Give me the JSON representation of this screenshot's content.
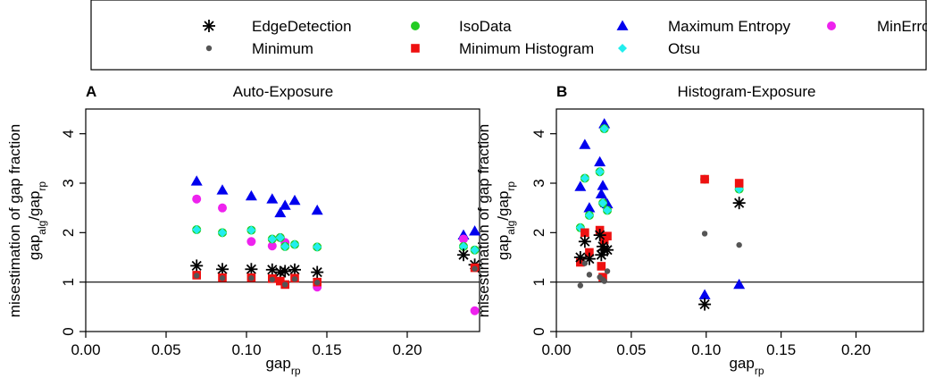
{
  "legend": {
    "position": "top",
    "entries": [
      {
        "label": "EdgeDetection",
        "marker": "asterisk",
        "color": "#000000"
      },
      {
        "label": "IsoData",
        "marker": "circle",
        "color": "#22cc22"
      },
      {
        "label": "Maximum Entropy",
        "marker": "triangle",
        "color": "#0000ee"
      },
      {
        "label": "MinError",
        "marker": "circle",
        "color": "#ee22ee"
      },
      {
        "label": "Minimum",
        "marker": "small-circle",
        "color": "#555555"
      },
      {
        "label": "Minimum Histogram",
        "marker": "square",
        "color": "#ee1111"
      },
      {
        "label": "Otsu",
        "marker": "diamond",
        "color": "#22eeee"
      }
    ]
  },
  "chart_data": [
    {
      "type": "scatter",
      "panel_label": "A",
      "title": "Auto-Exposure",
      "xlabel": {
        "main": "gap",
        "sub": "rp"
      },
      "ylabel": {
        "line1": "misestimation of gap fraction",
        "line2": [
          [
            "gap",
            "alg"
          ],
          [
            "/gap",
            "rp"
          ]
        ]
      },
      "xlim": [
        0,
        0.245
      ],
      "ylim": [
        0,
        4.5
      ],
      "xticks": [
        "0.00",
        "0.05",
        "0.10",
        "0.15",
        "0.20"
      ],
      "xtick_values": [
        0,
        0.05,
        0.1,
        0.15,
        0.2
      ],
      "yticks": [
        "0",
        "1",
        "2",
        "3",
        "4"
      ],
      "ytick_values": [
        0,
        1,
        2,
        3,
        4
      ],
      "hline": 1,
      "series": [
        {
          "name": "Maximum Entropy",
          "points": [
            [
              0.069,
              3.04
            ],
            [
              0.085,
              2.86
            ],
            [
              0.103,
              2.74
            ],
            [
              0.116,
              2.68
            ],
            [
              0.121,
              2.4
            ],
            [
              0.124,
              2.55
            ],
            [
              0.13,
              2.65
            ],
            [
              0.144,
              2.45
            ],
            [
              0.235,
              1.95
            ],
            [
              0.242,
              2.03
            ]
          ]
        },
        {
          "name": "MinError",
          "points": [
            [
              0.069,
              2.68
            ],
            [
              0.085,
              2.5
            ],
            [
              0.103,
              1.82
            ],
            [
              0.116,
              1.73
            ],
            [
              0.121,
              1.9
            ],
            [
              0.124,
              1.8
            ],
            [
              0.144,
              0.9
            ],
            [
              0.235,
              1.87
            ],
            [
              0.242,
              0.42
            ]
          ]
        },
        {
          "name": "IsoData",
          "points": [
            [
              0.069,
              2.06
            ],
            [
              0.085,
              2.0
            ],
            [
              0.103,
              2.05
            ],
            [
              0.116,
              1.87
            ],
            [
              0.121,
              1.9
            ],
            [
              0.124,
              1.72
            ],
            [
              0.13,
              1.76
            ],
            [
              0.144,
              1.71
            ],
            [
              0.235,
              1.72
            ],
            [
              0.242,
              1.65
            ]
          ]
        },
        {
          "name": "Otsu",
          "points": [
            [
              0.069,
              2.06
            ],
            [
              0.085,
              2.0
            ],
            [
              0.103,
              2.05
            ],
            [
              0.116,
              1.87
            ],
            [
              0.121,
              1.9
            ],
            [
              0.124,
              1.72
            ],
            [
              0.13,
              1.76
            ],
            [
              0.144,
              1.71
            ],
            [
              0.235,
              1.72
            ],
            [
              0.242,
              1.65
            ]
          ]
        },
        {
          "name": "EdgeDetection",
          "points": [
            [
              0.069,
              1.33
            ],
            [
              0.085,
              1.26
            ],
            [
              0.103,
              1.26
            ],
            [
              0.116,
              1.25
            ],
            [
              0.121,
              1.2
            ],
            [
              0.124,
              1.22
            ],
            [
              0.13,
              1.25
            ],
            [
              0.144,
              1.2
            ],
            [
              0.235,
              1.55
            ],
            [
              0.242,
              1.35
            ]
          ]
        },
        {
          "name": "Minimum Histogram",
          "points": [
            [
              0.069,
              1.14
            ],
            [
              0.085,
              1.09
            ],
            [
              0.103,
              1.09
            ],
            [
              0.116,
              1.07
            ],
            [
              0.121,
              1.02
            ],
            [
              0.124,
              0.95
            ],
            [
              0.13,
              1.08
            ],
            [
              0.144,
              1.0
            ],
            [
              0.242,
              1.29
            ]
          ]
        },
        {
          "name": "Minimum",
          "points": [
            [
              0.069,
              1.13
            ],
            [
              0.085,
              1.08
            ],
            [
              0.103,
              1.08
            ],
            [
              0.116,
              1.05
            ],
            [
              0.124,
              0.95
            ],
            [
              0.13,
              1.06
            ],
            [
              0.144,
              0.99
            ],
            [
              0.242,
              1.27
            ]
          ]
        }
      ]
    },
    {
      "type": "scatter",
      "panel_label": "B",
      "title": "Histogram-Exposure",
      "xlabel": {
        "main": "gap",
        "sub": "rp"
      },
      "ylabel": {
        "line1": "misestimation of gap fraction",
        "line2": [
          [
            "gap",
            "alg"
          ],
          [
            "/gap",
            "rp"
          ]
        ]
      },
      "xlim": [
        0,
        0.245
      ],
      "ylim": [
        0,
        4.5
      ],
      "xticks": [
        "0.00",
        "0.05",
        "0.10",
        "0.15",
        "0.20"
      ],
      "xtick_values": [
        0,
        0.05,
        0.1,
        0.15,
        0.2
      ],
      "yticks": [
        "0",
        "1",
        "2",
        "3",
        "4"
      ],
      "ytick_values": [
        0,
        1,
        2,
        3,
        4
      ],
      "hline": 1,
      "series": [
        {
          "name": "Maximum Entropy",
          "points": [
            [
              0.016,
              2.93
            ],
            [
              0.019,
              3.78
            ],
            [
              0.022,
              2.5
            ],
            [
              0.029,
              3.43
            ],
            [
              0.03,
              2.78
            ],
            [
              0.031,
              2.95
            ],
            [
              0.032,
              4.2
            ],
            [
              0.033,
              2.6
            ],
            [
              0.034,
              2.58
            ],
            [
              0.099,
              0.74
            ],
            [
              0.122,
              0.95
            ]
          ]
        },
        {
          "name": "IsoData",
          "points": [
            [
              0.016,
              2.1
            ],
            [
              0.019,
              3.1
            ],
            [
              0.022,
              2.35
            ],
            [
              0.029,
              3.23
            ],
            [
              0.031,
              2.6
            ],
            [
              0.032,
              4.1
            ],
            [
              0.034,
              2.45
            ],
            [
              0.099,
              3.08
            ],
            [
              0.122,
              2.88
            ]
          ]
        },
        {
          "name": "Otsu",
          "points": [
            [
              0.016,
              2.1
            ],
            [
              0.019,
              3.1
            ],
            [
              0.022,
              2.35
            ],
            [
              0.029,
              3.23
            ],
            [
              0.031,
              2.6
            ],
            [
              0.032,
              4.1
            ],
            [
              0.034,
              2.45
            ],
            [
              0.099,
              3.08
            ],
            [
              0.122,
              2.88
            ]
          ]
        },
        {
          "name": "Minimum Histogram",
          "points": [
            [
              0.016,
              1.4
            ],
            [
              0.019,
              2.0
            ],
            [
              0.022,
              1.6
            ],
            [
              0.029,
              2.05
            ],
            [
              0.03,
              1.32
            ],
            [
              0.031,
              1.1
            ],
            [
              0.032,
              1.85
            ],
            [
              0.034,
              1.93
            ],
            [
              0.099,
              3.08
            ],
            [
              0.122,
              3.0
            ]
          ]
        },
        {
          "name": "EdgeDetection",
          "points": [
            [
              0.016,
              1.5
            ],
            [
              0.019,
              1.82
            ],
            [
              0.022,
              1.47
            ],
            [
              0.029,
              1.95
            ],
            [
              0.03,
              1.55
            ],
            [
              0.031,
              1.72
            ],
            [
              0.032,
              1.65
            ],
            [
              0.034,
              1.65
            ],
            [
              0.099,
              0.55
            ],
            [
              0.122,
              2.6
            ]
          ]
        },
        {
          "name": "Minimum",
          "points": [
            [
              0.016,
              0.93
            ],
            [
              0.019,
              1.38
            ],
            [
              0.022,
              1.15
            ],
            [
              0.029,
              1.1
            ],
            [
              0.031,
              1.05
            ],
            [
              0.032,
              1.02
            ],
            [
              0.034,
              1.22
            ],
            [
              0.099,
              1.98
            ],
            [
              0.122,
              1.75
            ]
          ]
        }
      ]
    }
  ]
}
